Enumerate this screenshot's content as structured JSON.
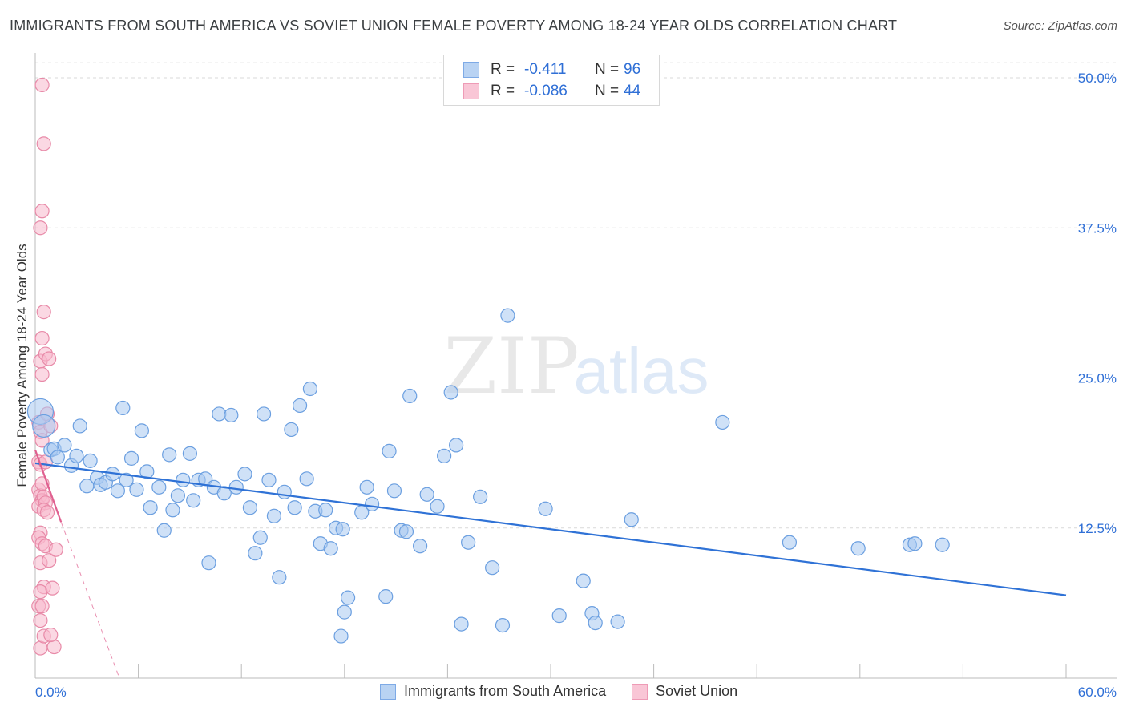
{
  "header": {
    "title": "IMMIGRANTS FROM SOUTH AMERICA VS SOVIET UNION FEMALE POVERTY AMONG 18-24 YEAR OLDS CORRELATION CHART",
    "source": "Source: ZipAtlas.com"
  },
  "watermark": {
    "zip": "ZIP",
    "atlas": "atlas"
  },
  "legend": {
    "r_label": "R =",
    "n_label": "N =",
    "series1": {
      "r": "-0.411",
      "n": "96"
    },
    "series2": {
      "r": "-0.086",
      "n": "44"
    }
  },
  "bottom_legend": {
    "series1": "Immigrants from South America",
    "series2": "Soviet Union"
  },
  "colors": {
    "blue_fill": "#a8c8f0",
    "blue_stroke": "#6b9fe0",
    "blue_line": "#2f72d6",
    "pink_fill": "#f7b8cc",
    "pink_stroke": "#e88aa8",
    "pink_line": "#e06090",
    "tick_text": "#2f6fd6"
  },
  "chart_data": {
    "type": "scatter",
    "title": "IMMIGRANTS FROM SOUTH AMERICA VS SOVIET UNION FEMALE POVERTY AMONG 18-24 YEAR OLDS CORRELATION CHART",
    "xlabel": "",
    "ylabel": "Female Poverty Among 18-24 Year Olds",
    "xlim": [
      0,
      60
    ],
    "ylim": [
      0,
      52
    ],
    "x_tick_labels": [
      "0.0%",
      "60.0%"
    ],
    "y_ticks": [
      12.5,
      25.0,
      37.5,
      50.0
    ],
    "y_tick_labels": [
      "12.5%",
      "25.0%",
      "37.5%",
      "50.0%"
    ],
    "grid": "horizontal dashed",
    "series": [
      {
        "name": "Immigrants from South America",
        "trend": {
          "x": [
            0,
            60
          ],
          "y": [
            17.9,
            6.9
          ]
        },
        "points": [
          [
            0.3,
            22.2
          ],
          [
            0.5,
            21.0
          ],
          [
            0.9,
            19.0
          ],
          [
            1.1,
            19.1
          ],
          [
            1.3,
            18.4
          ],
          [
            1.7,
            19.4
          ],
          [
            2.1,
            17.7
          ],
          [
            2.4,
            18.5
          ],
          [
            2.6,
            21.0
          ],
          [
            3.0,
            16.0
          ],
          [
            3.2,
            18.1
          ],
          [
            3.6,
            16.7
          ],
          [
            3.8,
            16.1
          ],
          [
            4.1,
            16.3
          ],
          [
            4.5,
            17.0
          ],
          [
            4.8,
            15.6
          ],
          [
            5.1,
            22.5
          ],
          [
            5.3,
            16.5
          ],
          [
            5.6,
            18.3
          ],
          [
            5.9,
            15.7
          ],
          [
            6.2,
            20.6
          ],
          [
            6.5,
            17.2
          ],
          [
            6.7,
            14.2
          ],
          [
            7.2,
            15.9
          ],
          [
            7.5,
            12.3
          ],
          [
            7.8,
            18.6
          ],
          [
            8.0,
            14.0
          ],
          [
            8.3,
            15.2
          ],
          [
            8.6,
            16.5
          ],
          [
            9.0,
            18.7
          ],
          [
            9.2,
            14.8
          ],
          [
            9.5,
            16.5
          ],
          [
            9.9,
            16.6
          ],
          [
            10.1,
            9.6
          ],
          [
            10.4,
            15.9
          ],
          [
            10.7,
            22.0
          ],
          [
            11.0,
            15.4
          ],
          [
            11.4,
            21.9
          ],
          [
            11.7,
            15.9
          ],
          [
            12.2,
            17.0
          ],
          [
            12.5,
            14.2
          ],
          [
            12.8,
            10.4
          ],
          [
            13.1,
            11.7
          ],
          [
            13.3,
            22.0
          ],
          [
            13.6,
            16.5
          ],
          [
            13.9,
            13.5
          ],
          [
            14.2,
            8.4
          ],
          [
            14.5,
            15.5
          ],
          [
            14.9,
            20.7
          ],
          [
            15.1,
            14.2
          ],
          [
            15.4,
            22.7
          ],
          [
            15.8,
            16.6
          ],
          [
            16.0,
            24.1
          ],
          [
            16.3,
            13.9
          ],
          [
            16.6,
            11.2
          ],
          [
            16.9,
            14.0
          ],
          [
            17.2,
            10.8
          ],
          [
            17.5,
            12.5
          ],
          [
            17.9,
            12.4
          ],
          [
            18.2,
            6.7
          ],
          [
            18.0,
            5.5
          ],
          [
            17.8,
            3.5
          ],
          [
            19.0,
            13.8
          ],
          [
            19.3,
            15.9
          ],
          [
            19.6,
            14.5
          ],
          [
            20.4,
            6.8
          ],
          [
            20.6,
            18.9
          ],
          [
            20.9,
            15.6
          ],
          [
            21.3,
            12.3
          ],
          [
            21.6,
            12.2
          ],
          [
            21.8,
            23.5
          ],
          [
            22.4,
            11.0
          ],
          [
            22.8,
            15.3
          ],
          [
            23.4,
            14.3
          ],
          [
            23.8,
            18.5
          ],
          [
            24.2,
            23.8
          ],
          [
            24.5,
            19.4
          ],
          [
            24.8,
            4.5
          ],
          [
            25.2,
            11.3
          ],
          [
            25.9,
            15.1
          ],
          [
            26.6,
            9.2
          ],
          [
            27.2,
            4.4
          ],
          [
            27.5,
            30.2
          ],
          [
            29.7,
            14.1
          ],
          [
            30.5,
            5.2
          ],
          [
            31.9,
            8.1
          ],
          [
            32.4,
            5.4
          ],
          [
            32.6,
            4.6
          ],
          [
            33.9,
            4.7
          ],
          [
            34.7,
            13.2
          ],
          [
            40.0,
            21.3
          ],
          [
            43.9,
            11.3
          ],
          [
            47.9,
            10.8
          ],
          [
            50.9,
            11.1
          ],
          [
            51.2,
            11.2
          ],
          [
            52.8,
            11.1
          ]
        ]
      },
      {
        "name": "Soviet Union",
        "trend": {
          "x": [
            0,
            1.5
          ],
          "y": [
            19.0,
            13.0
          ],
          "dashed_to": [
            4.9,
            0
          ]
        },
        "points": [
          [
            0.3,
            26.4
          ],
          [
            0.4,
            25.3
          ],
          [
            0.2,
            21.3
          ],
          [
            0.3,
            20.5
          ],
          [
            0.4,
            19.8
          ],
          [
            0.2,
            18.0
          ],
          [
            0.3,
            17.8
          ],
          [
            0.2,
            15.7
          ],
          [
            0.3,
            15.2
          ],
          [
            0.4,
            14.8
          ],
          [
            0.2,
            14.3
          ],
          [
            0.3,
            12.1
          ],
          [
            0.2,
            11.7
          ],
          [
            0.4,
            11.2
          ],
          [
            0.3,
            9.6
          ],
          [
            0.5,
            7.6
          ],
          [
            0.3,
            7.2
          ],
          [
            0.2,
            6.0
          ],
          [
            0.4,
            6.0
          ],
          [
            0.3,
            4.8
          ],
          [
            0.3,
            2.5
          ],
          [
            0.5,
            3.5
          ],
          [
            0.4,
            49.4
          ],
          [
            0.5,
            44.5
          ],
          [
            0.4,
            38.9
          ],
          [
            0.3,
            37.5
          ],
          [
            0.5,
            30.5
          ],
          [
            0.4,
            28.3
          ],
          [
            0.6,
            27.0
          ],
          [
            0.8,
            26.6
          ],
          [
            0.7,
            22.0
          ],
          [
            0.9,
            21.0
          ],
          [
            0.6,
            18.0
          ],
          [
            0.4,
            16.2
          ],
          [
            0.5,
            15.1
          ],
          [
            0.6,
            14.6
          ],
          [
            0.5,
            14.0
          ],
          [
            0.7,
            13.8
          ],
          [
            0.6,
            11.0
          ],
          [
            0.8,
            9.8
          ],
          [
            1.2,
            10.7
          ],
          [
            1.1,
            2.6
          ],
          [
            0.9,
            3.6
          ],
          [
            1.0,
            7.5
          ]
        ]
      }
    ]
  }
}
